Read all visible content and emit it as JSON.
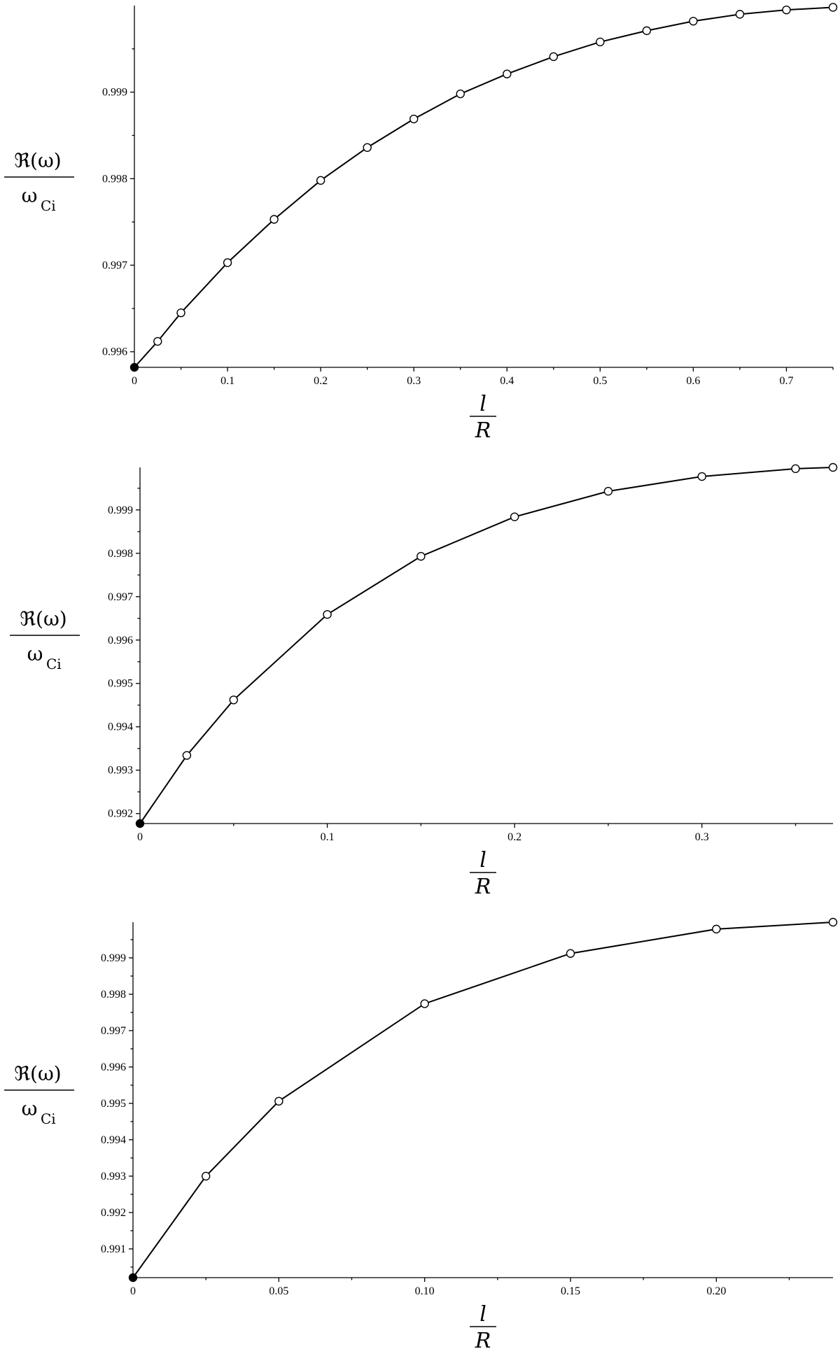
{
  "chart_data": [
    {
      "type": "line",
      "xlabel": {
        "numerator": "l",
        "denominator": "R"
      },
      "ylabel": {
        "numerator": "ℜ(ω)",
        "denominator": "ω",
        "subscript": "Ci"
      },
      "xlim": [
        0,
        0.75
      ],
      "ylim": [
        0.99582,
        1.0
      ],
      "x_ticks": [
        0,
        0.1,
        0.2,
        0.3,
        0.4,
        0.5,
        0.6,
        0.7
      ],
      "x_tick_labels": [
        "0",
        "0.1",
        "0.2",
        "0.3",
        "0.4",
        "0.5",
        "0.6",
        "0.7"
      ],
      "y_ticks": [
        0.996,
        0.997,
        0.998,
        0.999
      ],
      "y_tick_labels": [
        "0.996",
        "0.997",
        "0.998",
        "0.999"
      ],
      "grid": false,
      "series": [
        {
          "x": [
            0,
            0.025,
            0.05,
            0.1,
            0.15,
            0.2,
            0.25,
            0.3,
            0.35,
            0.4,
            0.45,
            0.5,
            0.55,
            0.6,
            0.65,
            0.7,
            0.75
          ],
          "y": [
            0.99582,
            0.99612,
            0.99645,
            0.99703,
            0.99753,
            0.99798,
            0.99836,
            0.99869,
            0.99898,
            0.99921,
            0.99941,
            0.99958,
            0.99971,
            0.99982,
            0.9999,
            0.99995,
            0.99998
          ]
        }
      ]
    },
    {
      "type": "line",
      "xlabel": {
        "numerator": "l",
        "denominator": "R"
      },
      "ylabel": {
        "numerator": "ℜ(ω)",
        "denominator": "ω",
        "subscript": "Ci"
      },
      "xlim": [
        0,
        0.37
      ],
      "ylim": [
        0.99177,
        0.99998
      ],
      "x_ticks": [
        0,
        0.1,
        0.2,
        0.3
      ],
      "x_tick_labels": [
        "0",
        "0.1",
        "0.2",
        "0.3"
      ],
      "y_ticks": [
        0.992,
        0.993,
        0.994,
        0.995,
        0.996,
        0.997,
        0.998,
        0.999
      ],
      "y_tick_labels": [
        "0.992",
        "0.993",
        "0.994",
        "0.995",
        "0.996",
        "0.997",
        "0.998",
        "0.999"
      ],
      "grid": false,
      "series": [
        {
          "x": [
            0,
            0.025,
            0.05,
            0.1,
            0.15,
            0.2,
            0.25,
            0.3,
            0.35,
            0.37
          ],
          "y": [
            0.99177,
            0.99334,
            0.99462,
            0.99659,
            0.99793,
            0.99884,
            0.99943,
            0.99977,
            0.99995,
            0.99998
          ]
        }
      ]
    },
    {
      "type": "line",
      "xlabel": {
        "numerator": "l",
        "denominator": "R"
      },
      "ylabel": {
        "numerator": "ℜ(ω)",
        "denominator": "ω",
        "subscript": "Ci"
      },
      "xlim": [
        0,
        0.24
      ],
      "ylim": [
        0.99021,
        0.99998
      ],
      "x_ticks": [
        0,
        0.05,
        0.1,
        0.15,
        0.2
      ],
      "x_tick_labels": [
        "0",
        "0.05",
        "0.10",
        "0.15",
        "0.20"
      ],
      "y_ticks": [
        0.991,
        0.992,
        0.993,
        0.994,
        0.995,
        0.996,
        0.997,
        0.998,
        0.999
      ],
      "y_tick_labels": [
        "0.991",
        "0.992",
        "0.993",
        "0.994",
        "0.995",
        "0.996",
        "0.997",
        "0.998",
        "0.999"
      ],
      "grid": false,
      "series": [
        {
          "x": [
            0,
            0.025,
            0.05,
            0.1,
            0.15,
            0.2,
            0.24
          ],
          "y": [
            0.99021,
            0.993,
            0.99506,
            0.99774,
            0.99912,
            0.99979,
            0.99998
          ]
        }
      ]
    }
  ]
}
